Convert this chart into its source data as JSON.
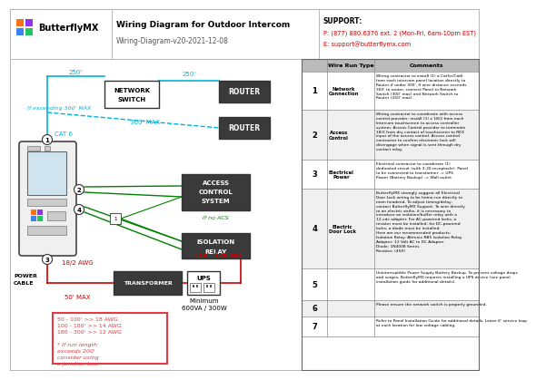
{
  "title": "Wiring Diagram for Outdoor Intercom",
  "subtitle": "Wiring-Diagram-v20-2021-12-08",
  "support_line1": "SUPPORT:",
  "support_line2": "P: (877) 880.6376 ext. 2 (Mon-Fri, 6am-10pm EST)",
  "support_line3": "E: support@butterflymx.com",
  "bg_color": "#ffffff",
  "row1_comment": "Wiring contractor to install (1) a Cat5e/Cat6\nfrom each intercom panel location directly to\nRouter if under 300'. If wire distance exceeds\n300' to router, connect Panel to Network\nSwitch (300' max) and Network Switch to\nRouter (250' max).",
  "row2_comment": "Wiring contractor to coordinate with access\ncontrol provider, install (1) x 18/2 from each\nIntercom touchscreen to access controller\nsystem. Access Control provider to terminate\n18/2 from dry contact of touchscreen to REX\ninput of the access control. Access control\ncontractor to confirm electronic lock will\ndisengage when signal is sent through dry\ncontact relay.",
  "row3_comment": "Electrical contractor to coordinate (1)\ndedicated circuit (with 3-20 receptacle). Panel\nto be connected to transformer -> UPS\nPower (Battery Backup) -> Wall outlet",
  "row4_comment": "ButterflyMX strongly suggest all Electrical\nDoor Lock wiring to be home-run directly to\nmain headend. To adjust timing/delay,\ncontact ButterflyMX Support. To wire directly\nto an electric strike, it is necessary to\nintroduce an isolation/buffer relay with a\n12-vdc adapter. For AC-powered locks, a\nresistor must be installed; for DC-powered\nlocks, a diode must be installed.\nHere are our recommended products:\nIsolation Relay: Altronix RB5 Isolation Relay\nAdapter: 12 Volt AC to DC Adapter\nDiode: 1N4008 Series\nResistor: (450)",
  "row5_comment": "Uninterruptible Power Supply Battery Backup. To prevent voltage drops\nand surges, ButterflyMX requires installing a UPS device (see panel\ninstallation guide for additional details).",
  "row6_comment": "Please ensure the network switch is properly grounded.",
  "row7_comment": "Refer to Panel Installation Guide for additional details. Leave 6' service loop\nat each location for low voltage cabling.",
  "cyan": "#00b4d8",
  "green": "#008000",
  "red_wire": "#cc0000",
  "red_box": "#e63946",
  "logo_colors": [
    "#f97316",
    "#9333ea",
    "#3b82f6",
    "#22c55e"
  ]
}
